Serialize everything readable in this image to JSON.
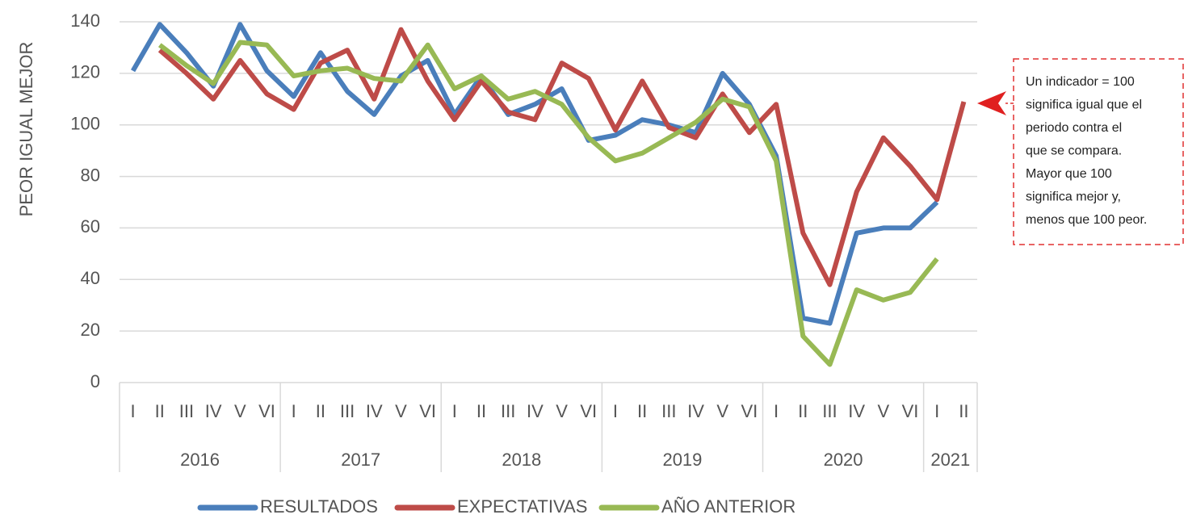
{
  "chart_data": {
    "type": "line",
    "y_label": "PEOR IGUAL MEJOR",
    "categories": [
      "I",
      "II",
      "III",
      "IV",
      "V",
      "VI",
      "I",
      "II",
      "III",
      "IV",
      "V",
      "VI",
      "I",
      "II",
      "III",
      "IV",
      "V",
      "VI",
      "I",
      "II",
      "III",
      "IV",
      "V",
      "VI",
      "I",
      "II",
      "III",
      "IV",
      "V",
      "VI",
      "I",
      "II"
    ],
    "groups": [
      {
        "label": "2016",
        "count": 6
      },
      {
        "label": "2017",
        "count": 6
      },
      {
        "label": "2018",
        "count": 6
      },
      {
        "label": "2019",
        "count": 6
      },
      {
        "label": "2020",
        "count": 6
      },
      {
        "label": "2021",
        "count": 2
      }
    ],
    "series": [
      {
        "name": "RESULTADOS",
        "color": "#4a7ebb",
        "values": [
          121,
          139,
          128,
          115,
          139,
          121,
          111,
          128,
          113,
          104,
          119,
          125,
          104,
          119,
          104,
          108,
          114,
          94,
          96,
          102,
          100,
          97,
          120,
          108,
          88,
          25,
          23,
          58,
          60,
          60,
          70,
          null
        ]
      },
      {
        "name": "EXPECTATIVAS",
        "color": "#be4b48",
        "values": [
          null,
          129,
          120,
          110,
          125,
          112,
          106,
          124,
          129,
          110,
          137,
          117,
          102,
          117,
          105,
          102,
          124,
          118,
          98,
          117,
          99,
          95,
          112,
          97,
          108,
          58,
          38,
          74,
          95,
          84,
          71,
          109
        ]
      },
      {
        "name": "AÑO ANTERIOR",
        "color": "#98b954",
        "values": [
          null,
          131,
          123,
          116,
          132,
          131,
          119,
          121,
          122,
          118,
          117,
          131,
          114,
          119,
          110,
          113,
          108,
          95,
          86,
          89,
          95,
          101,
          110,
          107,
          86,
          18,
          7,
          36,
          32,
          35,
          48,
          null
        ]
      }
    ],
    "ylim": [
      0,
      140
    ],
    "yticks": [
      0,
      20,
      40,
      60,
      80,
      100,
      120,
      140
    ],
    "grid": true,
    "annotation": [
      "Un indicador = 100",
      "significa igual que el",
      "periodo contra el",
      "que se compara.",
      "Mayor que 100",
      "significa mejor y,",
      "menos que 100 peor."
    ]
  }
}
